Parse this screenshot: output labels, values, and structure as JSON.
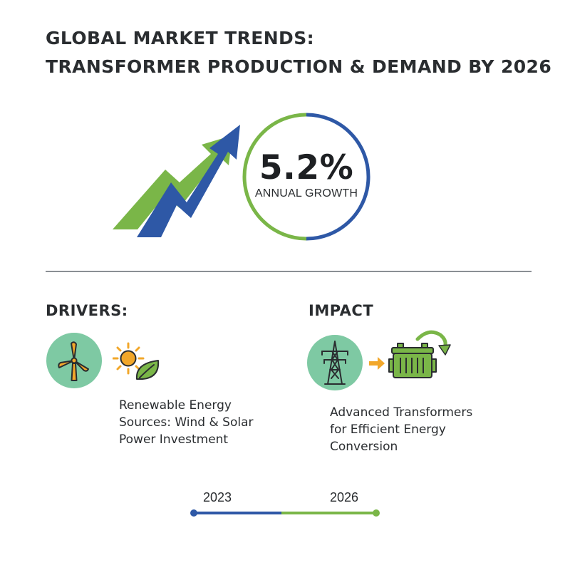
{
  "title": {
    "line1": "GLOBAL MARKET TRENDS:",
    "line2": "TRANSFORMER PRODUCTION & DEMAND BY 2026"
  },
  "growth": {
    "value": "5.2%",
    "label": "ANNUAL GROWTH"
  },
  "drivers": {
    "heading": "DRIVERS:",
    "text_lines": [
      "Renewable Energy",
      "Sources: Wind & Solar",
      "Power Investment"
    ],
    "icons": [
      "wind-turbine-icon",
      "sun-icon",
      "leaf-icon"
    ]
  },
  "impact": {
    "heading": "IMPACT",
    "text_lines": [
      "Advanced Transformers",
      "for Efficient Energy",
      "Conversion"
    ],
    "icons": [
      "power-tower-icon",
      "arrow-right-icon",
      "transformer-icon",
      "recycle-arrow-icon"
    ]
  },
  "timeline": {
    "start_year": "2023",
    "end_year": "2026"
  },
  "colors": {
    "blue": "#2e58a6",
    "green": "#7ab648",
    "mint": "#7ec9a3",
    "orange": "#f2a72a",
    "text": "#2a2d30"
  }
}
